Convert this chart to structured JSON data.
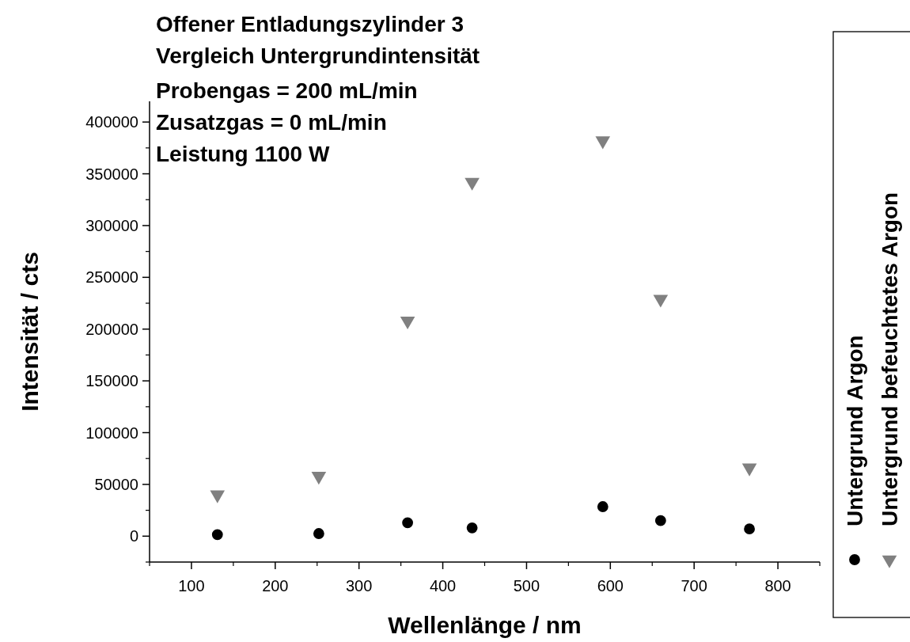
{
  "chart_data": {
    "type": "scatter",
    "title": "Offener Entladungszylinder 3",
    "subtitle": "Vergleich Untergrundintensität",
    "annotations": [
      "Probengas = 200 mL/min",
      "Zusatzgas = 0 mL/min",
      "Leistung 1100 W"
    ],
    "xlabel": "Wellenlänge / nm",
    "ylabel": "Intensität / cts",
    "x": [
      131,
      252,
      358,
      435,
      591,
      660,
      766
    ],
    "series": [
      {
        "name": "Untergrund Argon",
        "color": "#000000",
        "marker": "circle",
        "values": [
          1500,
          2500,
          13000,
          8000,
          28500,
          15000,
          7000
        ]
      },
      {
        "name": "Untergrund befeuchtetes Argon",
        "color": "#808080",
        "marker": "triangle",
        "values": [
          40000,
          58000,
          208000,
          342000,
          382000,
          229000,
          66000
        ]
      }
    ],
    "xlim": [
      50,
      850
    ],
    "xticks": [
      100,
      200,
      300,
      400,
      500,
      600,
      700,
      800
    ],
    "ylim": [
      -25000,
      420000
    ],
    "yticks": [
      0,
      50000,
      100000,
      150000,
      200000,
      250000,
      300000,
      350000,
      400000
    ],
    "grid": false,
    "legend": "right"
  }
}
